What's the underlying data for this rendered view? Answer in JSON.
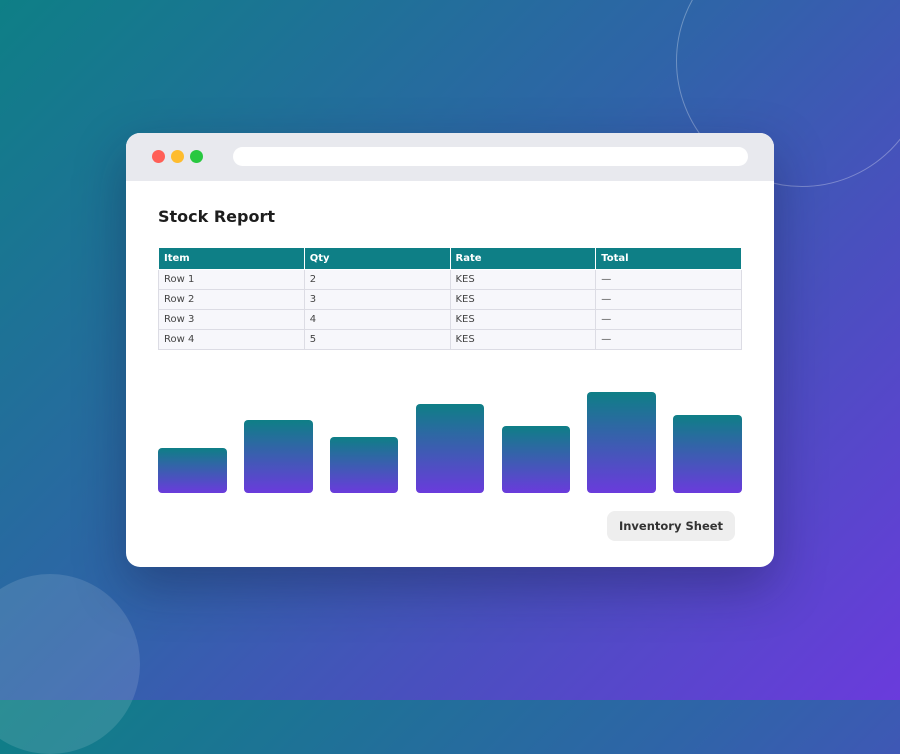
{
  "report": {
    "title": "Stock Report",
    "table": {
      "columns": [
        "Item",
        "Qty",
        "Rate",
        "Total"
      ],
      "rows": [
        [
          "Row 1",
          "2",
          "KES",
          "—"
        ],
        [
          "Row 2",
          "3",
          "KES",
          "—"
        ],
        [
          "Row 3",
          "4",
          "KES",
          "—"
        ],
        [
          "Row 4",
          "5",
          "KES",
          "—"
        ]
      ]
    },
    "button": "Inventory Sheet"
  }
}
